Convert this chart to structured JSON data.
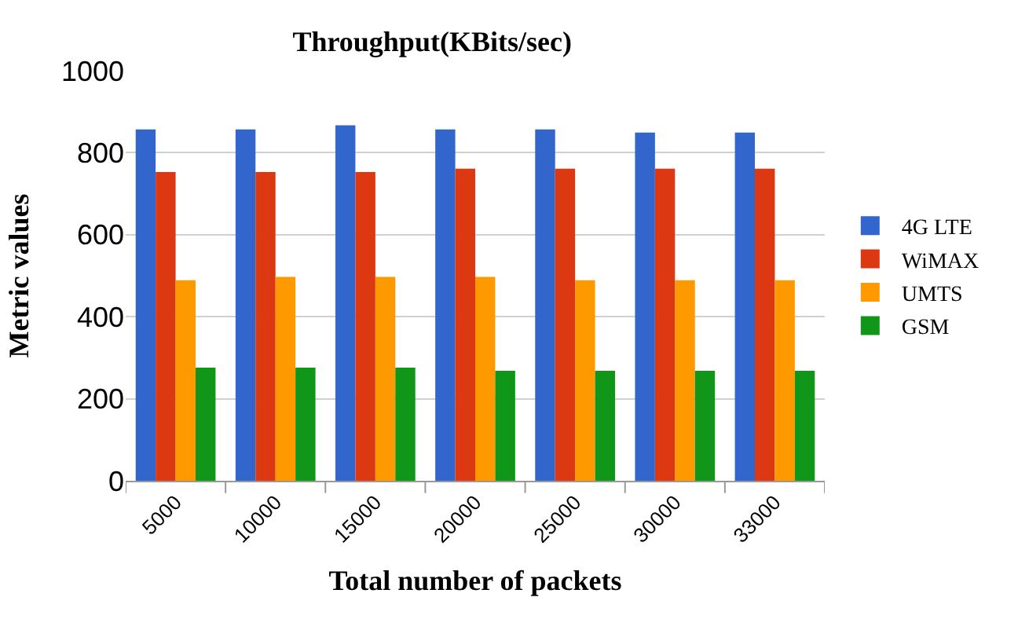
{
  "chart_data": {
    "type": "bar",
    "title": "Throughput(KBits/sec)",
    "xlabel": "Total number of packets",
    "ylabel": "Metric values",
    "categories": [
      "5000",
      "10000",
      "15000",
      "20000",
      "25000",
      "30000",
      "33000"
    ],
    "series": [
      {
        "name": "4G LTE",
        "color": "#3366cc",
        "values": [
          857,
          857,
          867,
          857,
          857,
          849,
          849
        ]
      },
      {
        "name": "WiMAX",
        "color": "#dc3912",
        "values": [
          753,
          753,
          753,
          761,
          761,
          761,
          761
        ]
      },
      {
        "name": "UMTS",
        "color": "#ff9900",
        "values": [
          489,
          497,
          497,
          497,
          489,
          489,
          489
        ]
      },
      {
        "name": "GSM",
        "color": "#109618",
        "values": [
          276,
          276,
          276,
          268,
          268,
          268,
          268
        ]
      }
    ],
    "ylim": [
      0,
      1000
    ],
    "yticks": [
      0,
      200,
      400,
      600,
      800,
      1000
    ],
    "grid": "y",
    "legend": "right"
  }
}
